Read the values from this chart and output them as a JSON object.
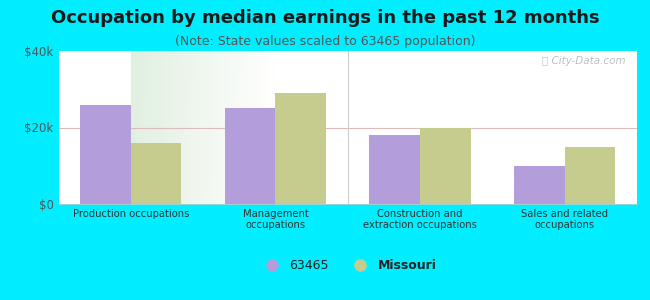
{
  "title": "Occupation by median earnings in the past 12 months",
  "subtitle": "(Note: State values scaled to 63465 population)",
  "categories": [
    "Production occupations",
    "Management\noccupations",
    "Construction and\nextraction occupations",
    "Sales and related\noccupations"
  ],
  "values_63465": [
    26000,
    25000,
    18000,
    10000
  ],
  "values_missouri": [
    16000,
    29000,
    20000,
    15000
  ],
  "color_63465": "#b39ddb",
  "color_missouri": "#c5cc8e",
  "background_outer": "#00eeff",
  "ylim": [
    0,
    40000
  ],
  "yticks": [
    0,
    20000,
    40000
  ],
  "ytick_labels": [
    "$0",
    "$20k",
    "$40k"
  ],
  "legend_label_1": "63465",
  "legend_label_2": "Missouri",
  "title_fontsize": 13,
  "subtitle_fontsize": 9,
  "bar_width": 0.35
}
